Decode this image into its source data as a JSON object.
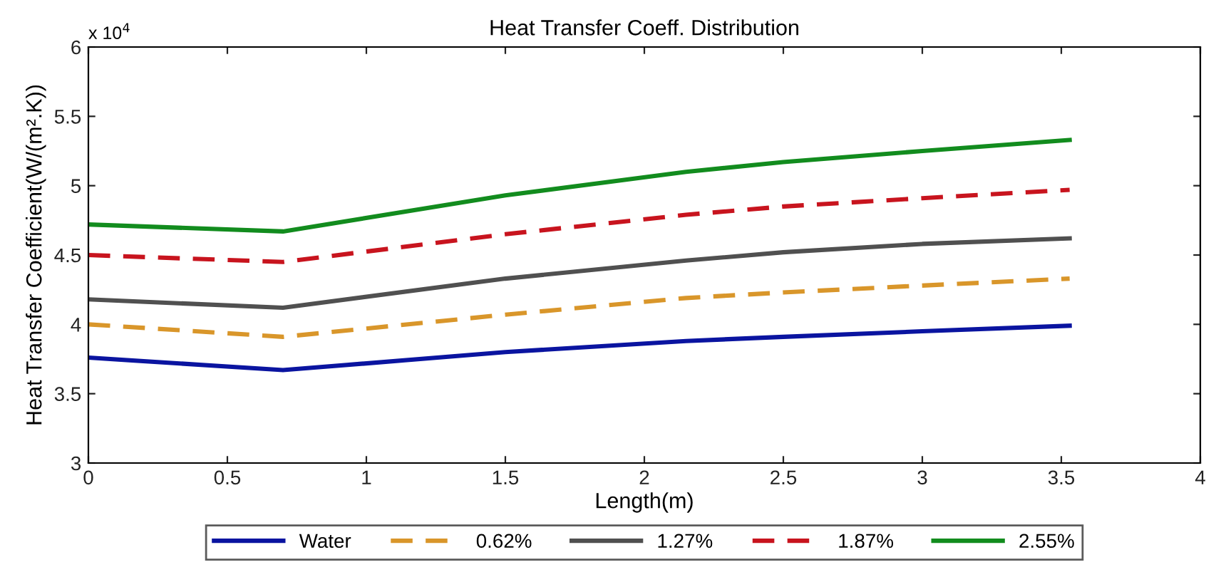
{
  "chart_data": {
    "type": "line",
    "title": "Heat Transfer Coeff. Distribution",
    "xlabel": "Length(m)",
    "ylabel": "Heat Transfer Coefficient(W/(m².K))",
    "annotations": [
      "x 10$^{4}$"
    ],
    "x": [
      0,
      0.7,
      1.5,
      2.15,
      2.5,
      3,
      3.53
    ],
    "series": [
      {
        "name": "Water",
        "color": "#0a14a0",
        "line_style": "solid",
        "values": [
          3.76,
          3.67,
          3.8,
          3.88,
          3.91,
          3.95,
          3.99
        ]
      },
      {
        "name": "0.62%",
        "color": "#d9962a",
        "line_style": "dashed",
        "values": [
          4.0,
          3.91,
          4.07,
          4.19,
          4.23,
          4.28,
          4.33
        ]
      },
      {
        "name": "1.27%",
        "color": "#505050",
        "line_style": "solid",
        "values": [
          4.18,
          4.12,
          4.33,
          4.46,
          4.52,
          4.58,
          4.62
        ]
      },
      {
        "name": "1.87%",
        "color": "#c8141e",
        "line_style": "dashed",
        "values": [
          4.5,
          4.45,
          4.65,
          4.79,
          4.85,
          4.91,
          4.97
        ]
      },
      {
        "name": "2.55%",
        "color": "#128c1e",
        "line_style": "solid",
        "values": [
          4.72,
          4.67,
          4.93,
          5.1,
          5.17,
          5.25,
          5.33
        ]
      }
    ],
    "xlim": [
      0,
      4
    ],
    "xticks": [
      0,
      0.5,
      1,
      1.5,
      2,
      2.5,
      3,
      3.5,
      4
    ],
    "ylim": [
      3,
      6
    ],
    "yticks": [
      3,
      3.5,
      4,
      4.5,
      5,
      5.5,
      6
    ],
    "grid": false,
    "legend": "bottom"
  }
}
